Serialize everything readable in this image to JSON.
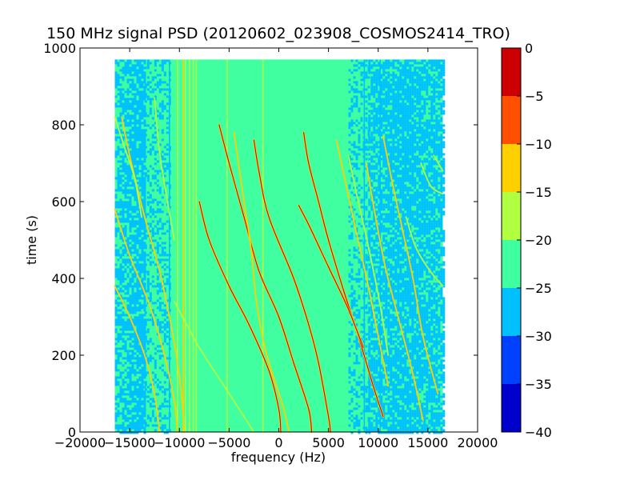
{
  "chart_data": {
    "type": "heatmap",
    "title": "150 MHz signal PSD (20120602_023908_COSMOS2414_TRO)",
    "xlabel": "frequency (Hz)",
    "ylabel": "time (s)",
    "xlim": [
      -20000,
      20000
    ],
    "ylim": [
      0,
      1000
    ],
    "xticks": [
      -20000,
      -15000,
      -10000,
      -5000,
      0,
      5000,
      10000,
      15000,
      20000
    ],
    "yticks": [
      0,
      200,
      400,
      600,
      800,
      1000
    ],
    "data_extent": {
      "x": [
        -16500,
        16500
      ],
      "y": [
        0,
        970
      ]
    },
    "colorbar": {
      "levels": [
        -40,
        -35,
        -30,
        -25,
        -20,
        -15,
        -10,
        -5,
        0
      ],
      "tick_labels": [
        "−40",
        "−35",
        "−30",
        "−25",
        "−20",
        "−15",
        "−10",
        "−5",
        "0"
      ],
      "colors": [
        "#0000cc",
        "#0040ff",
        "#00c0ff",
        "#40ffa0",
        "#b0ff40",
        "#ffd000",
        "#ff5000",
        "#cc0000"
      ]
    },
    "background": {
      "base_color": "#40ffa0",
      "low_regions": [
        {
          "x": [
            -16500,
            -13500
          ],
          "y": [
            0,
            970
          ]
        },
        {
          "x": [
            -13500,
            -11000
          ],
          "y": [
            0,
            970
          ],
          "density": "partial"
        },
        {
          "x": [
            7000,
            9000
          ],
          "y": [
            0,
            970
          ],
          "density": "partial"
        },
        {
          "x": [
            9000,
            16500
          ],
          "y": [
            0,
            970
          ]
        }
      ]
    },
    "vertical_lines": [
      {
        "x": -11000,
        "color": "#00c0ff"
      },
      {
        "x": -10200,
        "color": "#b0ff40"
      },
      {
        "x": -9600,
        "color": "#ffd000"
      },
      {
        "x": -9400,
        "color": "#b0ff40"
      },
      {
        "x": -9000,
        "color": "#b0ff40"
      },
      {
        "x": -8600,
        "color": "#b0ff40"
      },
      {
        "x": -8300,
        "color": "#b0ff40"
      },
      {
        "x": -5200,
        "color": "#b0ff40"
      },
      {
        "x": -1600,
        "color": "#b0ff40"
      },
      {
        "x": 8600,
        "color": "#00c0ff"
      },
      {
        "x": 10200,
        "color": "#00c0ff"
      }
    ],
    "series": [
      {
        "color": "#ff5000",
        "points": [
          [
            -6000,
            800
          ],
          [
            -5000,
            700
          ],
          [
            -3500,
            560
          ],
          [
            -2000,
            420
          ],
          [
            0,
            300
          ],
          [
            1500,
            180
          ],
          [
            3000,
            60
          ],
          [
            3300,
            0
          ]
        ]
      },
      {
        "color": "#ff5000",
        "points": [
          [
            -2500,
            760
          ],
          [
            -2000,
            680
          ],
          [
            -1000,
            560
          ],
          [
            1500,
            400
          ],
          [
            3000,
            280
          ],
          [
            4000,
            180
          ],
          [
            5000,
            40
          ],
          [
            5200,
            0
          ]
        ]
      },
      {
        "color": "#ff5000",
        "points": [
          [
            2500,
            780
          ],
          [
            3000,
            700
          ],
          [
            4000,
            600
          ],
          [
            5000,
            500
          ],
          [
            6500,
            370
          ],
          [
            8000,
            250
          ],
          [
            9500,
            120
          ],
          [
            10500,
            40
          ]
        ]
      },
      {
        "color": "#ff5000",
        "points": [
          [
            -8000,
            600
          ],
          [
            -7000,
            500
          ],
          [
            -5000,
            380
          ],
          [
            -3000,
            280
          ],
          [
            -1000,
            160
          ],
          [
            0,
            60
          ],
          [
            200,
            0
          ]
        ]
      },
      {
        "color": "#ff5000",
        "points": [
          [
            2000,
            590
          ],
          [
            3000,
            540
          ],
          [
            5000,
            430
          ],
          [
            7000,
            320
          ],
          [
            8500,
            220
          ]
        ]
      },
      {
        "color": "#ffd000",
        "points": [
          [
            -15800,
            820
          ],
          [
            -15000,
            720
          ],
          [
            -13500,
            560
          ],
          [
            -12000,
            420
          ],
          [
            -11000,
            300
          ],
          [
            -10300,
            200
          ],
          [
            -9800,
            100
          ],
          [
            -9500,
            0
          ]
        ]
      },
      {
        "color": "#ffd000",
        "points": [
          [
            -16500,
            580
          ],
          [
            -15000,
            460
          ],
          [
            -13000,
            330
          ],
          [
            -11500,
            200
          ],
          [
            -10500,
            80
          ],
          [
            -10200,
            0
          ]
        ]
      },
      {
        "color": "#ffd000",
        "points": [
          [
            -16500,
            380
          ],
          [
            -15000,
            300
          ],
          [
            -13500,
            200
          ],
          [
            -12500,
            100
          ],
          [
            -12000,
            0
          ]
        ]
      },
      {
        "color": "#ffd000",
        "points": [
          [
            -4500,
            780
          ],
          [
            -3500,
            600
          ],
          [
            -2800,
            480
          ],
          [
            -2200,
            330
          ],
          [
            -1200,
            200
          ],
          [
            500,
            60
          ],
          [
            1000,
            0
          ]
        ]
      },
      {
        "color": "#b0ff40",
        "points": [
          [
            -12500,
            870
          ],
          [
            -12000,
            730
          ],
          [
            -11200,
            600
          ],
          [
            -10500,
            500
          ]
        ]
      },
      {
        "color": "#b0ff40",
        "points": [
          [
            -10500,
            340
          ],
          [
            -8000,
            220
          ],
          [
            -5500,
            120
          ],
          [
            -3500,
            40
          ],
          [
            -2500,
            0
          ]
        ]
      },
      {
        "color": "#b0ff40",
        "points": [
          [
            -16500,
            820
          ],
          [
            -15500,
            740
          ],
          [
            -14500,
            660
          ],
          [
            -13800,
            560
          ]
        ]
      },
      {
        "color": "#ffd000",
        "points": [
          [
            8800,
            700
          ],
          [
            9800,
            550
          ],
          [
            10800,
            420
          ],
          [
            12000,
            300
          ],
          [
            13500,
            150
          ],
          [
            14500,
            30
          ]
        ]
      },
      {
        "color": "#ffd000",
        "points": [
          [
            10500,
            770
          ],
          [
            11500,
            640
          ],
          [
            12500,
            520
          ],
          [
            13500,
            400
          ],
          [
            14500,
            250
          ],
          [
            16000,
            100
          ]
        ]
      },
      {
        "color": "#b0ff40",
        "points": [
          [
            12800,
            560
          ],
          [
            13800,
            480
          ],
          [
            15200,
            420
          ],
          [
            16500,
            380
          ]
        ]
      },
      {
        "color": "#b0ff40",
        "points": [
          [
            14300,
            700
          ],
          [
            15300,
            640
          ],
          [
            16500,
            620
          ]
        ]
      },
      {
        "color": "#b0ff40",
        "points": [
          [
            15600,
            720
          ],
          [
            16500,
            680
          ]
        ]
      },
      {
        "color": "#b0ff40",
        "points": [
          [
            7000,
            720
          ],
          [
            8000,
            600
          ],
          [
            9200,
            460
          ],
          [
            10200,
            330
          ],
          [
            11000,
            200
          ]
        ]
      },
      {
        "color": "#ffd000",
        "points": [
          [
            5800,
            760
          ],
          [
            6800,
            640
          ],
          [
            7800,
            520
          ],
          [
            9000,
            380
          ],
          [
            10000,
            250
          ],
          [
            11000,
            120
          ]
        ]
      }
    ]
  }
}
